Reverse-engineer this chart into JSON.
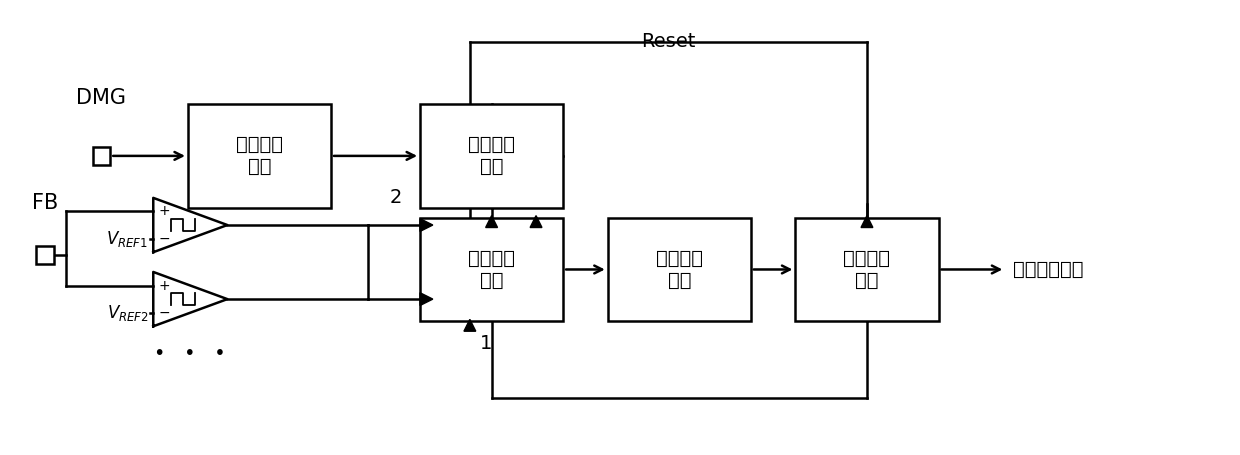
{
  "bg_color": "#ffffff",
  "blocks": [
    {
      "id": "detect",
      "label": "谷底检测\n电路"
    },
    {
      "id": "count",
      "label": "谷底计数\n电路"
    },
    {
      "id": "latch",
      "label": "谷底锁存\n电路"
    },
    {
      "id": "compare",
      "label": "谷底比较\n电路"
    },
    {
      "id": "calc",
      "label": "谷底运算\n电路"
    }
  ],
  "dmg_label": "DMG",
  "fb_label": "FB",
  "output_label": "谷底导通信号",
  "reset_label": "Reset",
  "num1": "1",
  "num2": "2"
}
